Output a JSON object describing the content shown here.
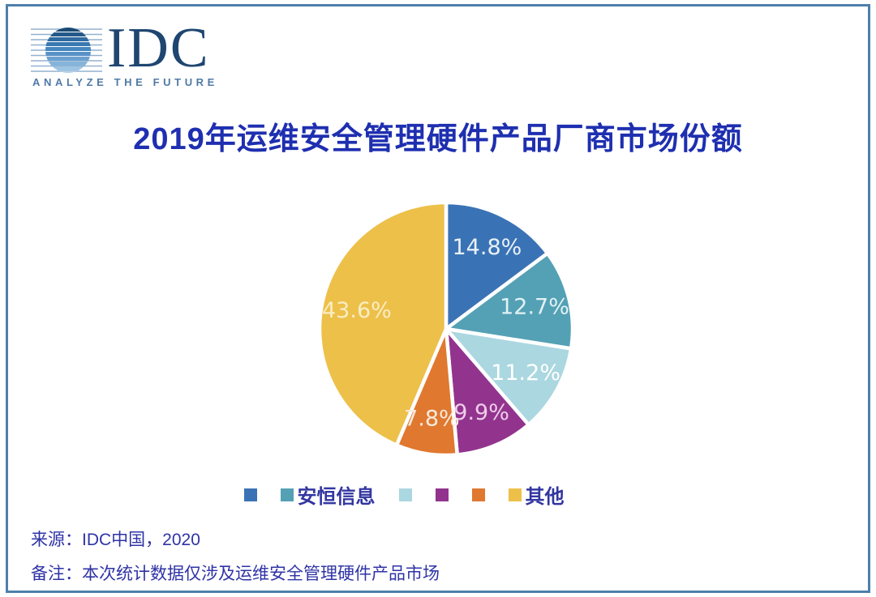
{
  "logo": {
    "brand": "IDC",
    "tagline": "ANALYZE THE FUTURE"
  },
  "title": "2019年运维安全管理硬件产品厂商市场份额",
  "chart_data": {
    "type": "pie",
    "title": "2019年运维安全管理硬件产品厂商市场份额",
    "start_angle_deg": 0,
    "direction": "clockwise",
    "legend_position": "bottom",
    "slices": [
      {
        "label": "",
        "value": 14.8,
        "display": "14.8%",
        "color": "#3a73b5",
        "label_color": "#e9f1f9"
      },
      {
        "label": "安恒信息",
        "value": 12.7,
        "display": "12.7%",
        "color": "#54a1b5",
        "label_color": "#e2f1f5"
      },
      {
        "label": "",
        "value": 11.2,
        "display": "11.2%",
        "color": "#abd7e0",
        "label_color": "#ffffff"
      },
      {
        "label": "",
        "value": 9.9,
        "display": "9.9%",
        "color": "#92348e",
        "label_color": "#efcdea"
      },
      {
        "label": "",
        "value": 7.8,
        "display": "7.8%",
        "color": "#e0782f",
        "label_color": "#f9ebdd"
      },
      {
        "label": "其他",
        "value": 43.6,
        "display": "43.6%",
        "color": "#edc04a",
        "label_color": "#f9edc4"
      }
    ]
  },
  "footer": {
    "source": "来源：IDC中国，2020",
    "note": "备注：本次统计数据仅涉及运维安全管理硬件产品市场"
  },
  "colors": {
    "card_border": "#4e7fab",
    "title_text": "#1e2fb0",
    "legend_text": "#3236a0",
    "footer_text": "#2f33a6",
    "brand_navy": "#1f4670",
    "tagline_blue": "#4f7aa6"
  }
}
